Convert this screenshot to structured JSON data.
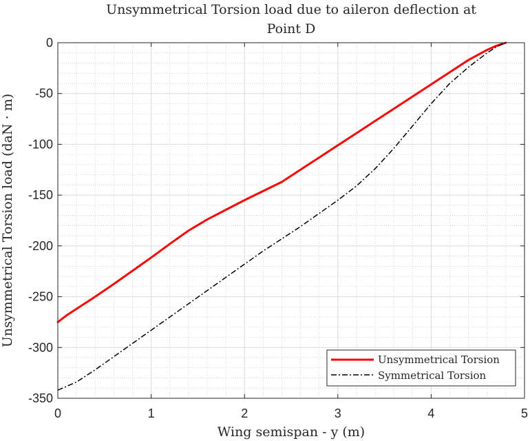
{
  "chart_data": {
    "type": "line",
    "title_lines": [
      "Unsymmetrical Torsion load due to aileron deflection at",
      "Point D"
    ],
    "xlabel": "Wing semispan - y (m)",
    "ylabel": "Unsymmetrical Torsion load (daN · m)",
    "xlim": [
      0,
      5
    ],
    "ylim": [
      -350,
      0
    ],
    "xticks": [
      0,
      1,
      2,
      3,
      4,
      5
    ],
    "yticks": [
      0,
      -50,
      -100,
      -150,
      -200,
      -250,
      -300,
      -350
    ],
    "xtick_labels": [
      "0",
      "1",
      "2",
      "3",
      "4",
      "5"
    ],
    "ytick_labels": [
      "0",
      "-50",
      "-100",
      "-150",
      "-200",
      "-250",
      "-300",
      "-350"
    ],
    "grid": "major and minor",
    "legend_position": "bottom-right",
    "series": [
      {
        "name": "Unsymmetrical Torsion",
        "color": "#ff0000",
        "style": "solid",
        "x": [
          0,
          0.1,
          0.2,
          0.4,
          0.6,
          0.8,
          1.0,
          1.2,
          1.4,
          1.6,
          1.8,
          2.0,
          2.2,
          2.4,
          2.6,
          2.8,
          3.0,
          3.2,
          3.4,
          3.6,
          3.8,
          4.0,
          4.2,
          4.4,
          4.5,
          4.6,
          4.7,
          4.8
        ],
        "y": [
          -275,
          -268,
          -262,
          -250,
          -237.5,
          -224.5,
          -211.5,
          -198,
          -185,
          -174,
          -164.5,
          -155,
          -146,
          -137,
          -125,
          -113,
          -101,
          -89,
          -77,
          -65,
          -53,
          -41,
          -29,
          -17,
          -12,
          -7,
          -3,
          0
        ]
      },
      {
        "name": "Symmetrical Torsion",
        "color": "#000000",
        "style": "dashdot",
        "x": [
          0,
          0.2,
          0.4,
          0.6,
          0.8,
          1.0,
          1.2,
          1.4,
          1.6,
          1.8,
          2.0,
          2.2,
          2.4,
          2.6,
          2.8,
          3.0,
          3.2,
          3.4,
          3.6,
          3.8,
          4.0,
          4.2,
          4.4,
          4.6,
          4.7,
          4.8
        ],
        "y": [
          -342,
          -334,
          -322,
          -309,
          -296,
          -283,
          -270,
          -257,
          -244,
          -231,
          -218,
          -205,
          -193,
          -181,
          -168,
          -155,
          -141,
          -124,
          -104,
          -82,
          -60,
          -40,
          -24,
          -10,
          -4,
          0
        ]
      }
    ]
  }
}
